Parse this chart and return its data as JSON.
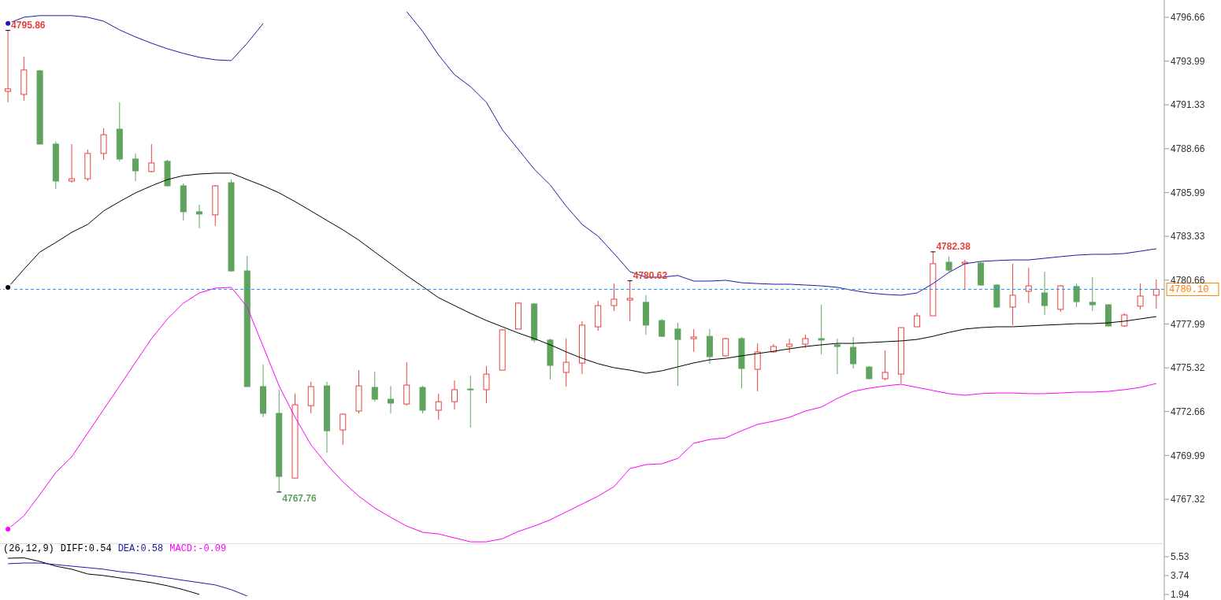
{
  "chart_data": [
    {
      "type": "candlestick",
      "categories": [
        null,
        null,
        null,
        null,
        null,
        null,
        null,
        null,
        null,
        null,
        null,
        null,
        null,
        null,
        null,
        null,
        null,
        null,
        null,
        null,
        null,
        null,
        null,
        null,
        null,
        null,
        null,
        null,
        null,
        null,
        null,
        null,
        null,
        null,
        null,
        null,
        null,
        null,
        null,
        null,
        null,
        null,
        null,
        null,
        null,
        null,
        null,
        null,
        null,
        null,
        null,
        null,
        null,
        null,
        null,
        null,
        null,
        null,
        null,
        null,
        null,
        null,
        null,
        null,
        null,
        null,
        null,
        null,
        null,
        null,
        null,
        null,
        null
      ],
      "ohlc": [
        [
          4792.15,
          4795.86,
          4791.48,
          4792.3
        ],
        [
          4791.96,
          4794.26,
          4791.58,
          4793.45
        ],
        [
          4793.4,
          4793.45,
          4788.94,
          4788.94
        ],
        [
          4788.94,
          4789.09,
          4786.21,
          4786.69
        ],
        [
          4786.69,
          4788.94,
          4786.59,
          4786.83
        ],
        [
          4786.83,
          4788.61,
          4786.69,
          4788.37
        ],
        [
          4788.37,
          4789.9,
          4787.98,
          4789.51
        ],
        [
          4789.85,
          4791.48,
          4787.89,
          4788.03
        ],
        [
          4788.03,
          4788.37,
          4786.69,
          4787.31
        ],
        [
          4787.27,
          4788.94,
          4787.22,
          4787.79
        ],
        [
          4787.89,
          4787.98,
          4786.35,
          4786.4
        ],
        [
          4786.4,
          4786.55,
          4784.29,
          4784.82
        ],
        [
          4784.82,
          4785.25,
          4783.81,
          4784.68
        ],
        [
          4784.63,
          4786.45,
          4783.96,
          4786.4
        ],
        [
          4786.59,
          4786.79,
          4781.17,
          4781.22
        ],
        [
          4781.22,
          4782.13,
          4774.18,
          4774.18
        ],
        [
          4774.18,
          4775.52,
          4772.31,
          4772.55
        ],
        [
          4772.55,
          4773.99,
          4767.76,
          4768.71
        ],
        [
          4768.61,
          4773.75,
          4768.61,
          4773.07
        ],
        [
          4773.02,
          4774.47,
          4772.55,
          4774.18
        ],
        [
          4774.22,
          4774.47,
          4770.15,
          4771.49
        ],
        [
          4771.54,
          4772.55,
          4770.63,
          4772.5
        ],
        [
          4772.69,
          4775.18,
          4772.55,
          4774.22
        ],
        [
          4774.13,
          4775.09,
          4773.26,
          4773.41
        ],
        [
          4773.41,
          4774.22,
          4772.55,
          4773.17
        ],
        [
          4773.12,
          4775.66,
          4773.02,
          4774.27
        ],
        [
          4774.13,
          4774.22,
          4772.55,
          4772.74
        ],
        [
          4772.74,
          4773.75,
          4772.16,
          4773.26
        ],
        [
          4773.26,
          4774.56,
          4772.79,
          4773.99
        ],
        [
          4774.03,
          4774.85,
          4771.68,
          4773.99
        ],
        [
          4773.99,
          4775.42,
          4773.17,
          4774.94
        ],
        [
          4775.18,
          4777.68,
          4775.18,
          4777.63
        ],
        [
          4777.68,
          4779.31,
          4777.68,
          4779.26
        ],
        [
          4779.21,
          4779.26,
          4776.86,
          4777.01
        ],
        [
          4777.01,
          4777.1,
          4774.61,
          4775.47
        ],
        [
          4775.04,
          4777.1,
          4774.18,
          4775.66
        ],
        [
          4775.61,
          4778.16,
          4774.94,
          4777.92
        ],
        [
          4777.82,
          4779.4,
          4777.58,
          4779.11
        ],
        [
          4779.11,
          4780.45,
          4778.78,
          4779.5
        ],
        [
          4779.45,
          4780.62,
          4778.16,
          4779.55
        ],
        [
          4779.31,
          4779.74,
          4777.34,
          4777.92
        ],
        [
          4778.2,
          4778.3,
          4777.2,
          4777.24
        ],
        [
          4777.68,
          4778.06,
          4774.22,
          4777.05
        ],
        [
          4777.1,
          4777.68,
          4776.29,
          4777.2
        ],
        [
          4777.24,
          4777.68,
          4775.57,
          4776.0
        ],
        [
          4776.05,
          4777.15,
          4776.0,
          4777.1
        ],
        [
          4777.1,
          4777.2,
          4774.08,
          4775.28
        ],
        [
          4775.23,
          4776.81,
          4773.89,
          4776.29
        ],
        [
          4776.29,
          4776.76,
          4776.24,
          4776.62
        ],
        [
          4776.62,
          4777.1,
          4776.24,
          4776.76
        ],
        [
          4776.76,
          4777.34,
          4776.53,
          4777.1
        ],
        [
          4777.1,
          4779.16,
          4776.14,
          4777.01
        ],
        [
          4776.72,
          4777.1,
          4774.94,
          4776.62
        ],
        [
          4776.57,
          4777.2,
          4775.28,
          4775.57
        ],
        [
          4775.37,
          4775.42,
          4774.61,
          4774.66
        ],
        [
          4774.66,
          4776.38,
          4774.56,
          4775.04
        ],
        [
          4774.94,
          4777.77,
          4774.37,
          4777.77
        ],
        [
          4777.82,
          4778.68,
          4777.82,
          4778.49
        ],
        [
          4778.49,
          4782.38,
          4778.49,
          4781.66
        ],
        [
          4781.75,
          4782.09,
          4781.17,
          4781.27
        ],
        [
          4781.66,
          4781.89,
          4780.07,
          4781.75
        ],
        [
          4781.7,
          4781.75,
          4780.31,
          4780.36
        ],
        [
          4780.36,
          4780.41,
          4778.97,
          4779.02
        ],
        [
          4779.02,
          4781.66,
          4777.92,
          4779.74
        ],
        [
          4779.98,
          4781.42,
          4779.26,
          4780.31
        ],
        [
          4779.88,
          4781.17,
          4778.54,
          4779.11
        ],
        [
          4778.88,
          4780.36,
          4778.73,
          4780.31
        ],
        [
          4780.27,
          4780.45,
          4779.02,
          4779.35
        ],
        [
          4779.31,
          4780.84,
          4778.78,
          4779.16
        ],
        [
          4779.16,
          4779.21,
          4777.82,
          4777.87
        ],
        [
          4777.87,
          4778.64,
          4777.82,
          4778.54
        ],
        [
          4779.07,
          4780.45,
          4778.88,
          4779.69
        ],
        [
          4779.74,
          4780.7,
          4778.92,
          4780.1
        ]
      ],
      "colors": [
        "#e8413c",
        "#e8413c",
        "#5fa35f",
        "#5fa35f",
        "#e8413c",
        "#e8413c",
        "#e8413c",
        "#5fa35f",
        "#5fa35f",
        "#e8413c",
        "#5fa35f",
        "#5fa35f",
        "#5fa35f",
        "#e8413c",
        "#5fa35f",
        "#5fa35f",
        "#5fa35f",
        "#5fa35f",
        "#e8413c",
        "#e8413c",
        "#5fa35f",
        "#e8413c",
        "#e8413c",
        "#5fa35f",
        "#5fa35f",
        "#e8413c",
        "#5fa35f",
        "#e8413c",
        "#e8413c",
        "#5fa35f",
        "#e8413c",
        "#e8413c",
        "#e8413c",
        "#5fa35f",
        "#5fa35f",
        "#e8413c",
        "#e8413c",
        "#e8413c",
        "#e8413c",
        "#e8413c",
        "#5fa35f",
        "#5fa35f",
        "#5fa35f",
        "#e8413c",
        "#5fa35f",
        "#e8413c",
        "#5fa35f",
        "#e8413c",
        "#e8413c",
        "#e8413c",
        "#e8413c",
        "#5fa35f",
        "#5fa35f",
        "#5fa35f",
        "#5fa35f",
        "#e8413c",
        "#e8413c",
        "#e8413c",
        "#e8413c",
        "#5fa35f",
        "#e8413c",
        "#5fa35f",
        "#5fa35f",
        "#e8413c",
        "#e8413c",
        "#5fa35f",
        "#e8413c",
        "#5fa35f",
        "#5fa35f",
        "#5fa35f",
        "#e8413c",
        "#e8413c",
        "#e8413c"
      ],
      "series": [
        {
          "type": "line",
          "color": "#000000",
          "values": [
            4780.22,
            4781.32,
            4782.37,
            4782.95,
            4783.57,
            4784.05,
            4784.87,
            4785.44,
            4785.97,
            4786.4,
            4786.78,
            4787.02,
            4787.12,
            4787.17,
            4787.17,
            4786.78,
            4786.4,
            4785.97,
            4785.44,
            4784.87,
            4784.29,
            4783.72,
            4783.09,
            4782.37,
            4781.66,
            4780.94,
            4780.27,
            4779.59,
            4779.11,
            4778.64,
            4778.2,
            4777.82,
            4777.44,
            4777.1,
            4776.72,
            4776.29,
            4775.9,
            4775.57,
            4775.33,
            4775.18,
            4774.99,
            4775.14,
            4775.38,
            4775.62,
            4775.81,
            4775.9,
            4776.05,
            4776.19,
            4776.33,
            4776.48,
            4776.62,
            4776.72,
            4776.81,
            4776.81,
            4776.86,
            4776.91,
            4776.96,
            4777.05,
            4777.24,
            4777.48,
            4777.68,
            4777.77,
            4777.82,
            4777.82,
            4777.87,
            4777.92,
            4777.96,
            4778.01,
            4778.01,
            4778.06,
            4778.16,
            4778.3,
            4778.44
          ]
        },
        {
          "type": "line",
          "color": "#1a1aa6",
          "values": [
            4796.28,
            4796.66,
            4796.76,
            4796.76,
            4796.76,
            4796.66,
            4796.42,
            4795.89,
            4795.46,
            4795.08,
            4794.74,
            4794.46,
            4794.22,
            4794.07,
            4794.02,
            4795.08,
            4796.28,
            null,
            null,
            null,
            null,
            null,
            null,
            null,
            null,
            4797.0,
            4795.8,
            4794.36,
            4793.16,
            4792.44,
            4791.48,
            4789.81,
            4788.61,
            4787.41,
            4786.45,
            4785.16,
            4784.05,
            4783.33,
            4782.28,
            4781.17,
            4780.84,
            4780.84,
            4780.94,
            4780.6,
            4780.6,
            4780.65,
            4780.5,
            4780.45,
            4780.41,
            4780.41,
            4780.36,
            4780.31,
            4780.22,
            4780.03,
            4779.88,
            4779.79,
            4779.74,
            4779.88,
            4780.45,
            4781.13,
            4781.66,
            4781.8,
            4781.85,
            4781.89,
            4781.89,
            4781.99,
            4782.09,
            4782.18,
            4782.23,
            4782.23,
            4782.28,
            4782.42,
            4782.57
          ]
        },
        {
          "type": "line",
          "color": "#ff00ff",
          "values": [
            4765.5,
            4766.31,
            4767.61,
            4768.95,
            4769.91,
            4771.35,
            4772.79,
            4774.22,
            4775.66,
            4777.1,
            4778.3,
            4779.26,
            4779.88,
            4780.17,
            4780.22,
            4779.02,
            4776.62,
            4774.22,
            4772.31,
            4770.63,
            4769.43,
            4768.38,
            4767.51,
            4766.79,
            4766.22,
            4765.69,
            4765.31,
            4765.21,
            4764.97,
            4764.73,
            4764.73,
            4764.92,
            4765.36,
            4765.69,
            4766.07,
            4766.55,
            4767.03,
            4767.51,
            4768.09,
            4769.19,
            4769.43,
            4769.48,
            4769.81,
            4770.73,
            4770.96,
            4771.06,
            4771.49,
            4771.88,
            4772.07,
            4772.31,
            4772.69,
            4772.93,
            4773.46,
            4773.89,
            4774.08,
            4774.22,
            4774.32,
            4774.13,
            4773.94,
            4773.75,
            4773.65,
            4773.75,
            4773.79,
            4773.79,
            4773.75,
            4773.75,
            4773.79,
            4773.84,
            4773.84,
            4773.89,
            4773.99,
            4774.13,
            4774.37
          ]
        }
      ],
      "ylim": [
        4764.64,
        4797.71
      ],
      "yticks": [
        4796.66,
        4793.99,
        4791.33,
        4788.66,
        4785.99,
        4783.33,
        4780.66,
        4777.99,
        4775.32,
        4772.66,
        4769.99,
        4767.32
      ],
      "annotations": [
        "4795.86",
        "4767.76",
        "4780.62",
        "4782.38"
      ],
      "ref_lines": [
        {
          "axis": "y",
          "value": 4780.1,
          "label": "4780.10",
          "color": "#1e90ff",
          "line_style": "dashed"
        }
      ],
      "tick_labels": "y"
    },
    {
      "type": "line",
      "title": "(26,12,9)",
      "categories": [
        null,
        null,
        null,
        null,
        null,
        null,
        null,
        null,
        null,
        null,
        null,
        null,
        null,
        null,
        null,
        null,
        null,
        null,
        null,
        null,
        null,
        null,
        null,
        null,
        null,
        null,
        null,
        null,
        null,
        null,
        null,
        null,
        null,
        null,
        null,
        null,
        null,
        null,
        null,
        null,
        null,
        null,
        null,
        null,
        null,
        null,
        null,
        null,
        null,
        null,
        null,
        null,
        null,
        null,
        null,
        null,
        null,
        null,
        null,
        null,
        null,
        null,
        null,
        null,
        null,
        null,
        null,
        null,
        null,
        null,
        null,
        null,
        null
      ],
      "series": [
        {
          "name": "DIFF:0.54",
          "color": "#000000",
          "values": [
            5.38,
            5.42,
            5.08,
            4.63,
            4.34,
            3.89,
            3.74,
            3.52,
            3.29,
            3.07,
            2.77,
            2.4,
            1.95,
            null,
            null,
            null,
            null,
            null,
            null,
            null,
            null,
            null,
            null,
            null,
            null,
            null,
            null,
            null,
            null,
            null,
            null,
            null,
            null,
            null,
            null,
            null,
            null,
            null,
            null,
            null,
            null,
            null,
            null,
            null,
            null,
            null,
            null,
            null,
            null,
            null,
            null,
            null,
            null,
            null,
            null,
            null,
            null,
            null,
            null,
            null,
            null,
            null,
            null,
            null,
            null,
            null,
            null,
            null,
            null,
            null,
            null,
            null,
            null
          ]
        },
        {
          "name": "DEA:0.58",
          "color": "#1a1aa6",
          "values": [
            4.86,
            4.93,
            4.93,
            4.78,
            4.63,
            4.49,
            4.34,
            4.11,
            3.96,
            3.74,
            3.52,
            3.29,
            3.07,
            2.85,
            2.4,
            1.8,
            null,
            null,
            null,
            null,
            null,
            null,
            null,
            null,
            null,
            null,
            null,
            null,
            null,
            null,
            null,
            null,
            null,
            null,
            null,
            null,
            null,
            null,
            null,
            null,
            null,
            null,
            null,
            null,
            null,
            null,
            null,
            null,
            null,
            null,
            null,
            null,
            null,
            null,
            null,
            null,
            null,
            null,
            null,
            null,
            null,
            null,
            null,
            null,
            null,
            null,
            null,
            null,
            null,
            null,
            null,
            null,
            null
          ]
        }
      ],
      "annotations": [
        "MACD:-0.09"
      ],
      "ylim": [
        1.42,
        6.8
      ],
      "yticks": [
        5.53,
        3.74,
        1.94
      ],
      "legend": "top left",
      "tick_labels": "y"
    }
  ]
}
